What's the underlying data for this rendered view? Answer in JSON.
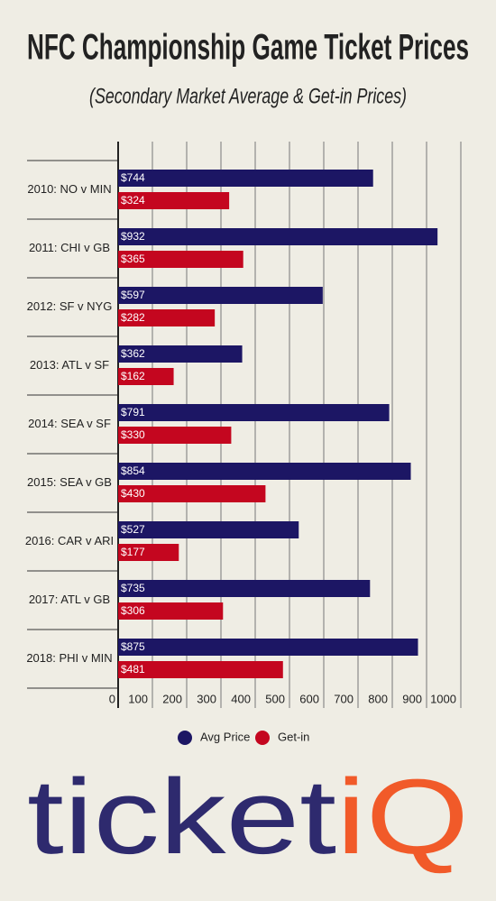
{
  "chart_data": {
    "type": "bar",
    "orientation": "horizontal",
    "title": "NFC Championship Game Ticket Prices",
    "subtitle": "(Secondary Market Average & Get-in Prices)",
    "categories": [
      "2010: NO v MIN",
      "2011: CHI v GB",
      "2012: SF v NYG",
      "2013: ATL v SF",
      "2014: SEA v SF",
      "2015: SEA v GB",
      "2016: CAR v ARI",
      "2017: ATL v GB",
      "2018: PHI v MIN"
    ],
    "series": [
      {
        "name": "Avg Price",
        "color": "#1c1664",
        "values": [
          744,
          932,
          597,
          362,
          791,
          854,
          527,
          735,
          875
        ],
        "value_labels": [
          "$744",
          "$932",
          "$597",
          "$362",
          "$791",
          "$854",
          "$527",
          "$735",
          "$875"
        ]
      },
      {
        "name": "Get-in",
        "color": "#c4061f",
        "values": [
          324,
          365,
          282,
          162,
          330,
          430,
          177,
          306,
          481
        ],
        "value_labels": [
          "$324",
          "$365",
          "$282",
          "$162",
          "$330",
          "$430",
          "$177",
          "$306",
          "$481"
        ]
      }
    ],
    "xlim": [
      0,
      1000
    ],
    "xticks": [
      0,
      100,
      200,
      300,
      400,
      500,
      600,
      700,
      800,
      900,
      1000
    ],
    "grid": true,
    "legend": "bottom"
  },
  "logo": {
    "main": "ticket",
    "accent": "iQ"
  }
}
